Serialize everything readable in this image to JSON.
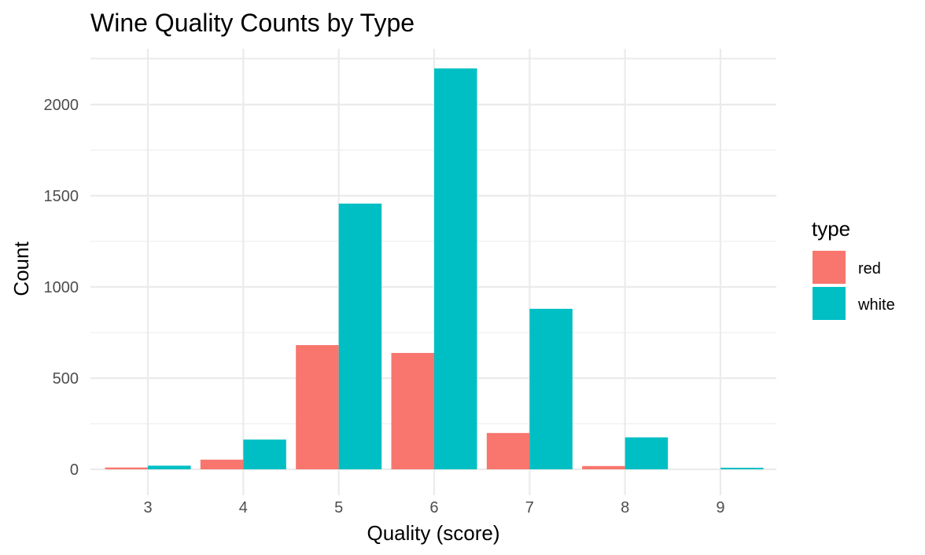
{
  "chart_data": {
    "type": "bar",
    "title": "Wine Quality Counts by Type",
    "xlabel": "Quality (score)",
    "ylabel": "Count",
    "categories": [
      "3",
      "4",
      "5",
      "6",
      "7",
      "8",
      "9"
    ],
    "series": [
      {
        "name": "red",
        "color": "#F8766D",
        "values": [
          10,
          53,
          681,
          638,
          199,
          18,
          0
        ]
      },
      {
        "name": "white",
        "color": "#00BFC4",
        "values": [
          20,
          163,
          1457,
          2198,
          880,
          175,
          5
        ]
      }
    ],
    "ylim": [
      0,
      2200
    ],
    "yticks": [
      "0",
      "500",
      "1000",
      "1500",
      "2000"
    ],
    "ytick_values": [
      0,
      500,
      1000,
      1500,
      2000
    ],
    "grid": true,
    "legend": {
      "title": "type",
      "position": "right"
    }
  }
}
